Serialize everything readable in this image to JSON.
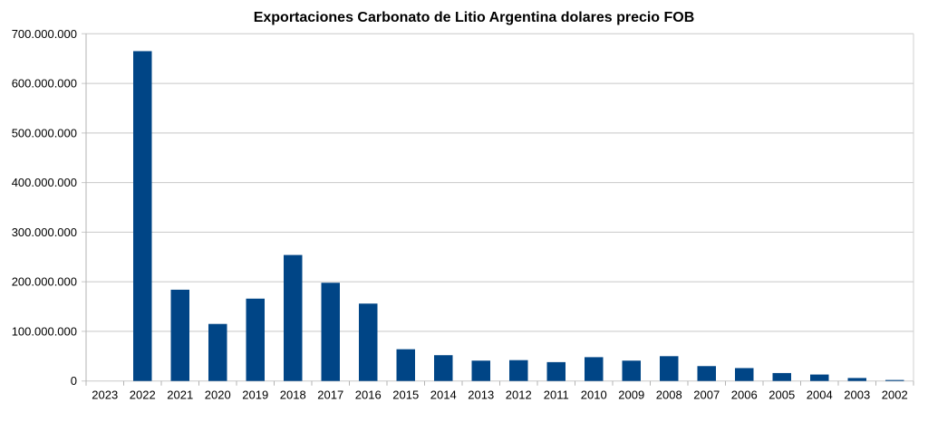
{
  "chart_data": {
    "type": "bar",
    "title": "Exportaciones Carbonato de Litio Argentina dolares  precio FOB",
    "xlabel": "",
    "ylabel": "",
    "categories": [
      "2023",
      "2022",
      "2021",
      "2020",
      "2019",
      "2018",
      "2017",
      "2016",
      "2015",
      "2014",
      "2013",
      "2012",
      "2011",
      "2010",
      "2009",
      "2008",
      "2007",
      "2006",
      "2005",
      "2004",
      "2003",
      "2002"
    ],
    "values": [
      0,
      665000000,
      184000000,
      115000000,
      166000000,
      254000000,
      198000000,
      156000000,
      64000000,
      52000000,
      41000000,
      42000000,
      38000000,
      48000000,
      41000000,
      50000000,
      30000000,
      26000000,
      16000000,
      13000000,
      6000000,
      2000000
    ],
    "ylim": [
      0,
      700000000
    ],
    "yticks": [
      "0",
      "100.000.000",
      "200.000.000",
      "300.000.000",
      "400.000.000",
      "500.000.000",
      "600.000.000",
      "700.000.000"
    ],
    "grid": true,
    "legend": "none",
    "bar_color": "#004586",
    "grid_color": "#c8c8c8"
  }
}
